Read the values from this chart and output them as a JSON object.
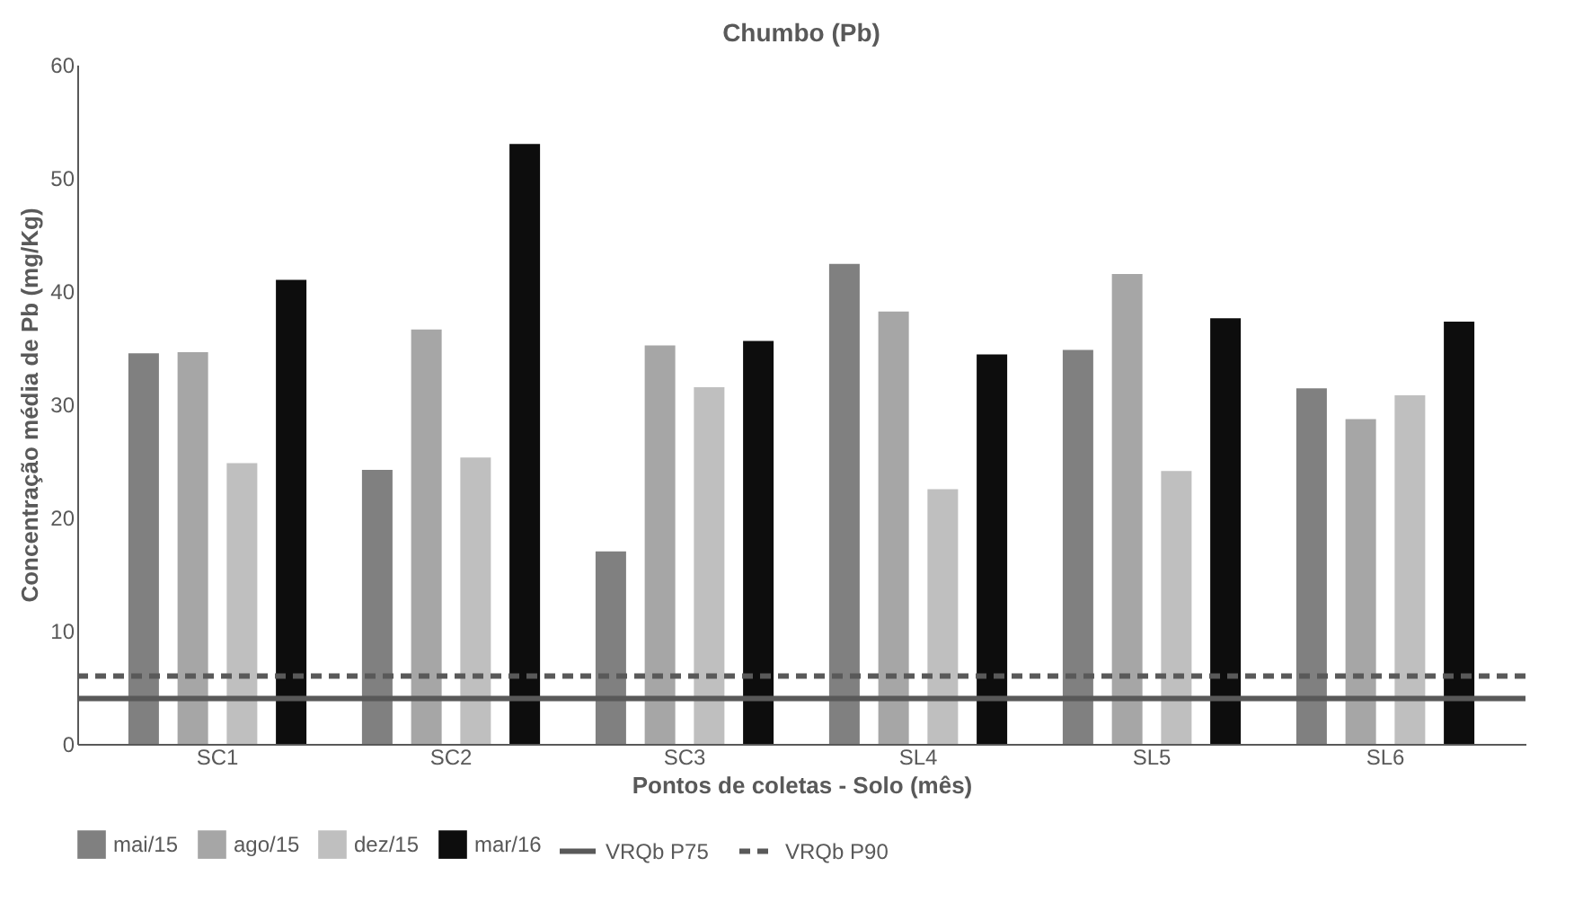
{
  "chart_data": {
    "type": "bar",
    "title": "Chumbo (Pb)",
    "xlabel": "Pontos de coletas - Solo (mês)",
    "ylabel": "Concentração média de Pb (mg/Kg)",
    "categories": [
      "SC1",
      "SC2",
      "SC3",
      "SL4",
      "SL5",
      "SL6"
    ],
    "series": [
      {
        "name": "mai/15",
        "color": "#808080",
        "values": [
          34.5,
          24.2,
          17.0,
          42.4,
          34.8,
          31.4
        ]
      },
      {
        "name": "ago/15",
        "color": "#a6a6a6",
        "values": [
          34.6,
          36.6,
          35.2,
          38.2,
          41.5,
          28.7
        ]
      },
      {
        "name": "dez/15",
        "color": "#bfbfbf",
        "values": [
          24.8,
          25.3,
          31.5,
          22.5,
          24.1,
          30.8
        ]
      },
      {
        "name": "mar/16",
        "color": "#0d0d0d",
        "values": [
          41.0,
          53.0,
          35.6,
          34.4,
          37.6,
          37.3
        ]
      }
    ],
    "ref_lines": [
      {
        "axis": "y",
        "value": 4,
        "label": "VRQb P75",
        "color": "#595959",
        "line_style": "solid"
      },
      {
        "axis": "y",
        "value": 6,
        "label": "VRQb P90",
        "color": "#595959",
        "line_style": "dashed"
      }
    ],
    "ylim": [
      0,
      60
    ],
    "yticks": [
      0,
      10,
      20,
      30,
      40,
      50,
      60
    ],
    "grid": false,
    "legend": "bottom"
  }
}
